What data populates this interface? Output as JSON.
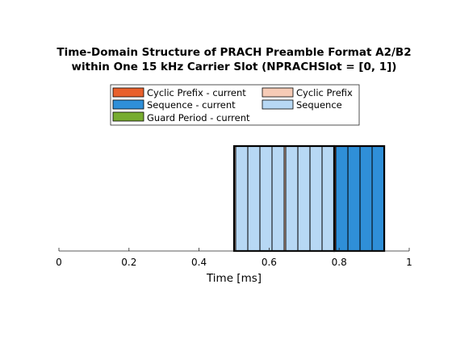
{
  "chart_data": {
    "type": "bar",
    "orientation": "horizontal-timeline",
    "title": [
      "Time-Domain Structure of PRACH Preamble Format A2/B2",
      "within One 15 kHz Carrier Slot (NPRACHSlot = [0, 1])"
    ],
    "xlabel": "Time  [ms]",
    "ylabel": "",
    "xlim": [
      0,
      1
    ],
    "xticks": [
      "0",
      "0.2",
      "0.4",
      "0.6",
      "0.8",
      "1"
    ],
    "xtick_values": [
      0,
      0.2,
      0.4,
      0.6,
      0.8,
      1
    ],
    "grid": false,
    "legend_position": "top",
    "legend": [
      {
        "label": "Cyclic Prefix - current",
        "color": "#e8602c"
      },
      {
        "label": "Cyclic Prefix",
        "color": "#f6cbb6"
      },
      {
        "label": "Sequence - current",
        "color": "#2f8fd8"
      },
      {
        "label": "Sequence",
        "color": "#b7d8f4"
      },
      {
        "label": "Guard Period - current",
        "color": "#77ac30"
      }
    ],
    "series": [
      {
        "name": "Cyclic Prefix",
        "segments": [
          [
            0.5,
            0.5046
          ],
          [
            0.6429,
            0.6475
          ]
        ]
      },
      {
        "name": "Sequence",
        "segments": [
          [
            0.5046,
            0.5392
          ],
          [
            0.5392,
            0.5738
          ],
          [
            0.5738,
            0.6083
          ],
          [
            0.6083,
            0.6429
          ],
          [
            0.6475,
            0.6821
          ],
          [
            0.6821,
            0.7167
          ],
          [
            0.7167,
            0.7512
          ],
          [
            0.7512,
            0.7858
          ]
        ]
      },
      {
        "name": "Cyclic Prefix - current",
        "segments": [
          [
            0.7858,
            0.7904
          ]
        ]
      },
      {
        "name": "Sequence - current",
        "segments": [
          [
            0.7904,
            0.825
          ],
          [
            0.825,
            0.8596
          ],
          [
            0.8596,
            0.8941
          ],
          [
            0.8941,
            0.9287
          ]
        ]
      },
      {
        "name": "Guard Period - current",
        "segments": []
      }
    ]
  }
}
